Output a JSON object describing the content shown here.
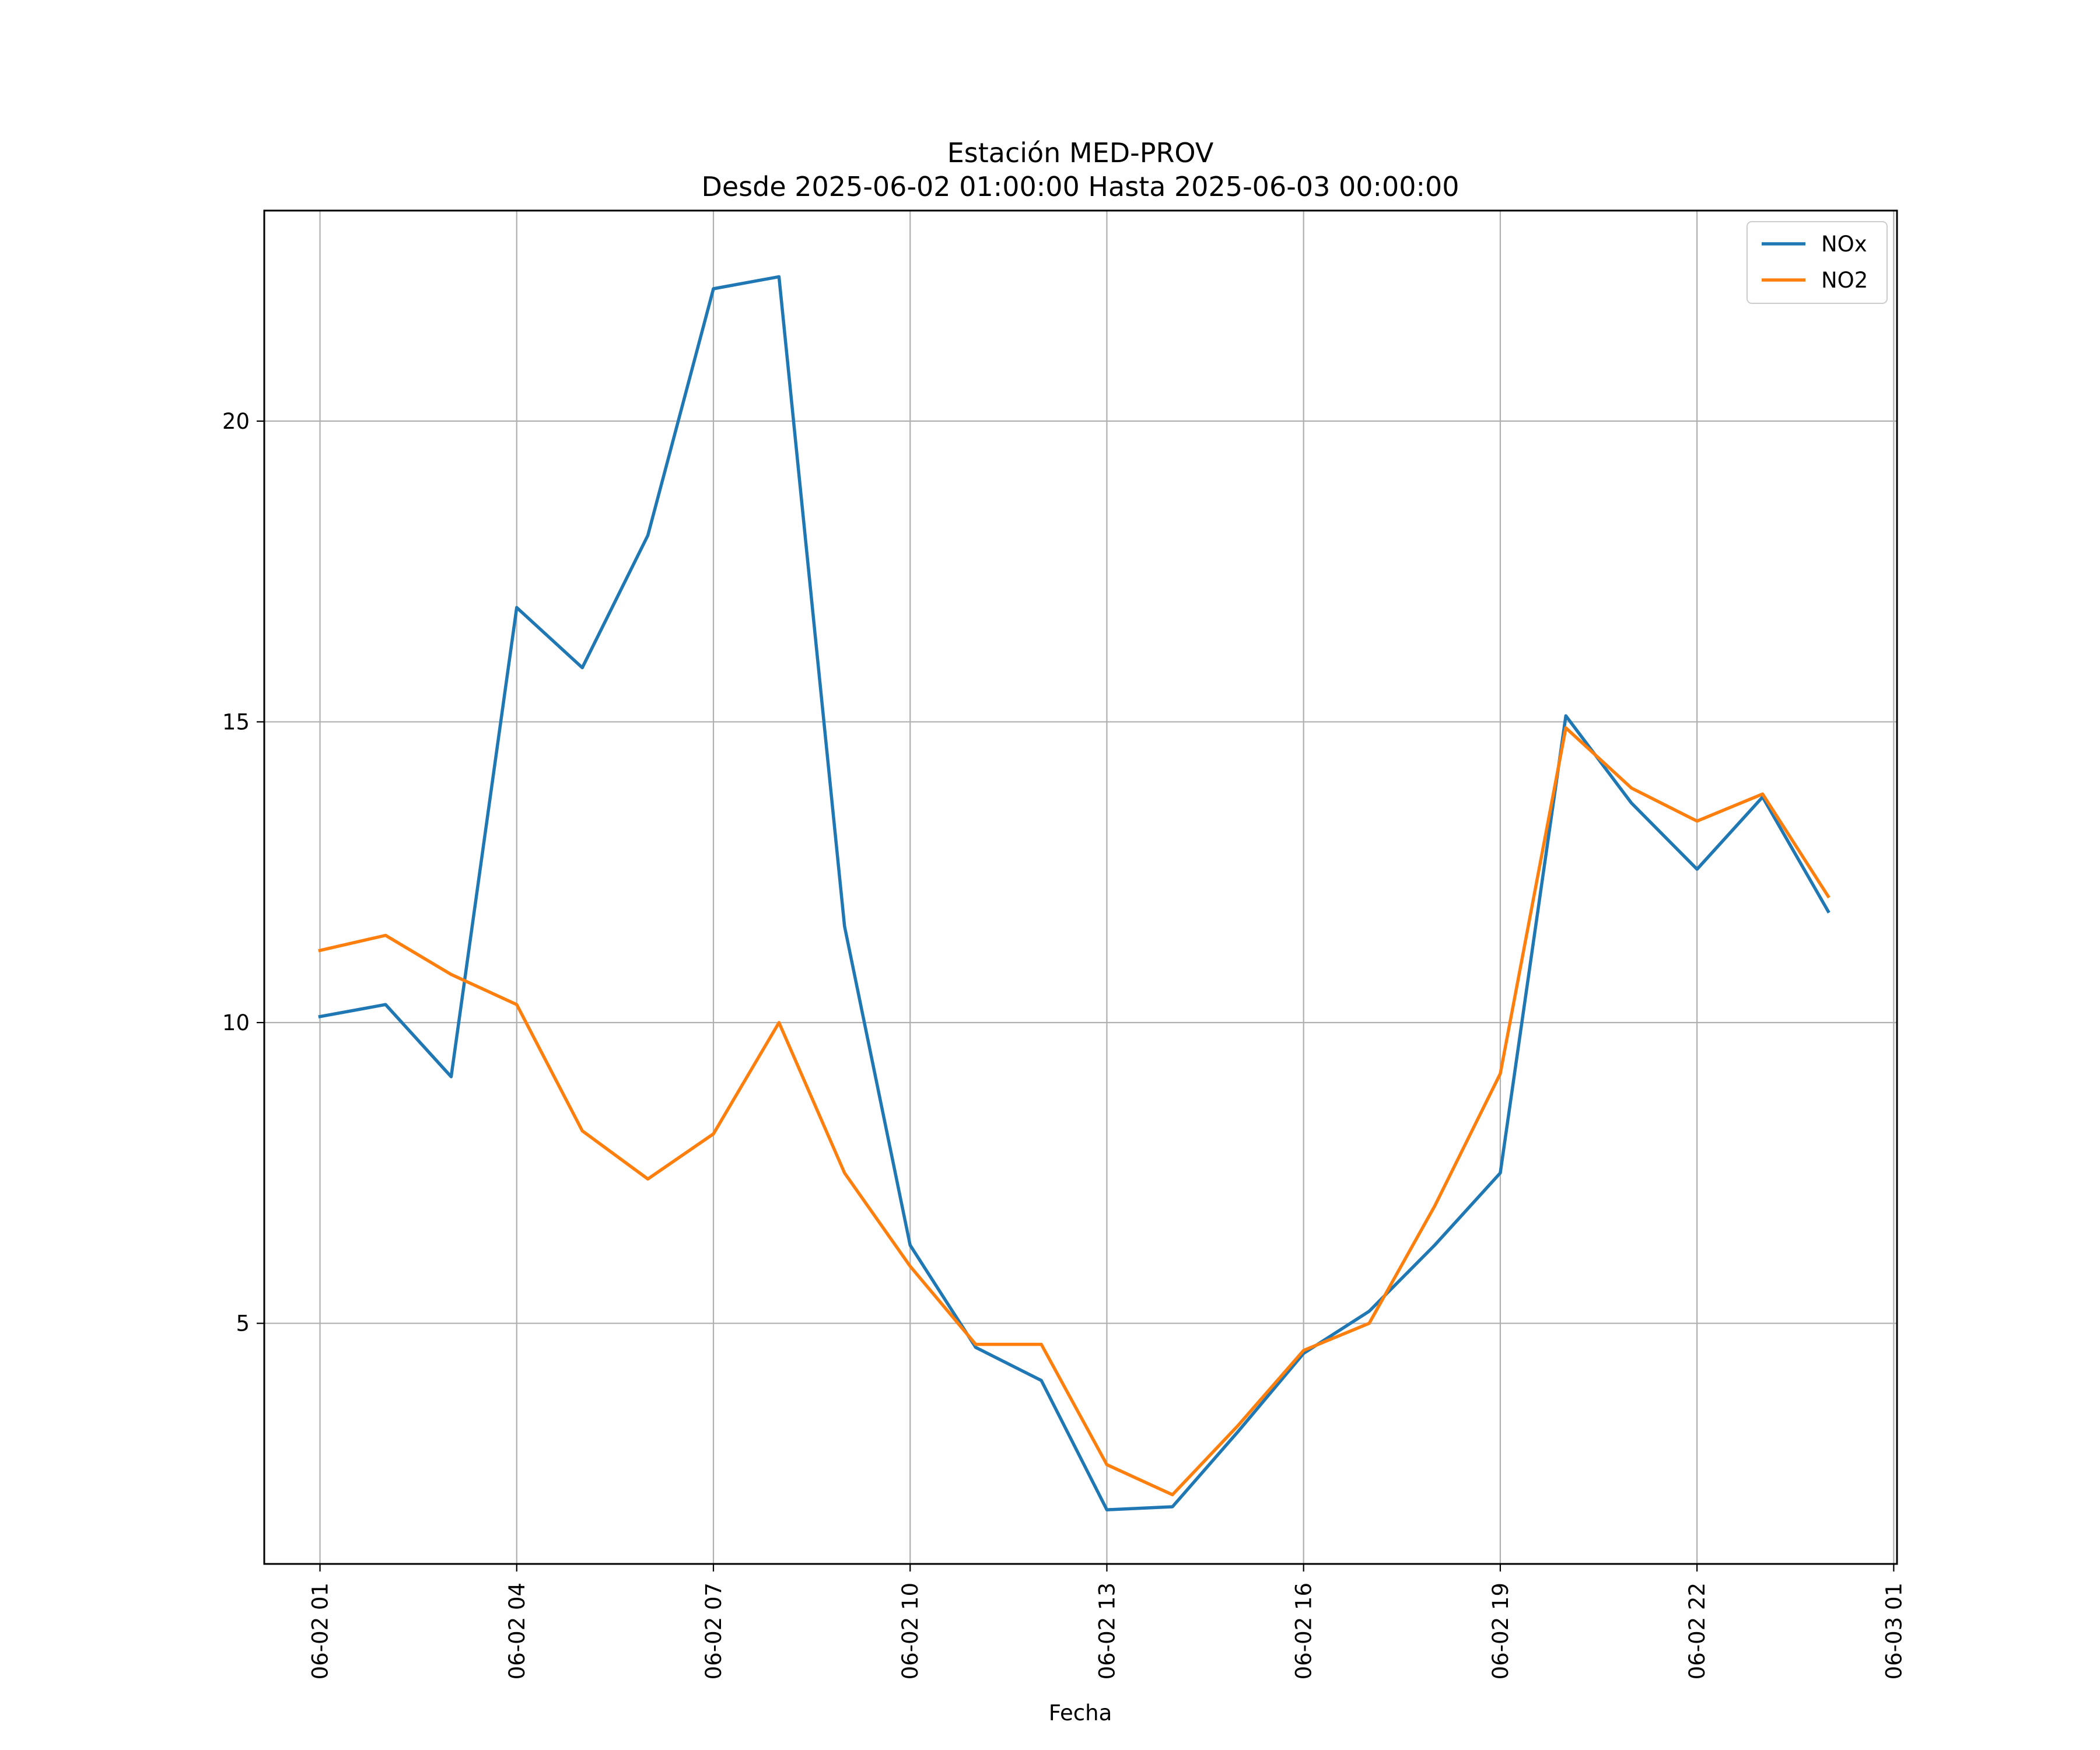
{
  "chart_data": {
    "type": "line",
    "title": "Estación MED-PROV",
    "subtitle": "Desde 2025-06-02 01:00:00 Hasta 2025-06-03 00:00:00",
    "xlabel": "Fecha",
    "ylabel": "",
    "x_hours": [
      1,
      2,
      3,
      4,
      5,
      6,
      7,
      8,
      9,
      10,
      11,
      12,
      13,
      14,
      15,
      16,
      17,
      18,
      19,
      20,
      21,
      22,
      23,
      24
    ],
    "x": [
      "2025-06-02 01:00",
      "2025-06-02 02:00",
      "2025-06-02 03:00",
      "2025-06-02 04:00",
      "2025-06-02 05:00",
      "2025-06-02 06:00",
      "2025-06-02 07:00",
      "2025-06-02 08:00",
      "2025-06-02 09:00",
      "2025-06-02 10:00",
      "2025-06-02 11:00",
      "2025-06-02 12:00",
      "2025-06-02 13:00",
      "2025-06-02 14:00",
      "2025-06-02 15:00",
      "2025-06-02 16:00",
      "2025-06-02 17:00",
      "2025-06-02 18:00",
      "2025-06-02 19:00",
      "2025-06-02 20:00",
      "2025-06-02 21:00",
      "2025-06-02 22:00",
      "2025-06-02 23:00",
      "2025-06-03 00:00"
    ],
    "series": [
      {
        "name": "NOx",
        "color": "#1f77b4",
        "values": [
          10.1,
          10.3,
          9.1,
          16.9,
          15.9,
          18.1,
          22.2,
          22.4,
          11.6,
          6.3,
          4.6,
          4.05,
          1.9,
          1.95,
          3.2,
          4.5,
          5.2,
          6.3,
          7.5,
          15.1,
          13.65,
          12.55,
          13.75,
          11.85
        ]
      },
      {
        "name": "NO2",
        "color": "#ff7f0e",
        "values": [
          11.2,
          11.45,
          10.8,
          10.3,
          8.2,
          7.4,
          8.15,
          10.0,
          7.5,
          5.95,
          4.65,
          4.65,
          2.65,
          2.15,
          3.3,
          4.55,
          5.0,
          6.95,
          9.15,
          14.9,
          13.9,
          13.35,
          13.8,
          12.1
        ]
      }
    ],
    "x_tick_hours": [
      1,
      4,
      7,
      10,
      13,
      16,
      19,
      22,
      25
    ],
    "x_tick_labels": [
      "06-02 01",
      "06-02 04",
      "06-02 07",
      "06-02 10",
      "06-02 13",
      "06-02 16",
      "06-02 19",
      "06-02 22",
      "06-03 01"
    ],
    "y_ticks": [
      5,
      10,
      15,
      20
    ],
    "xlim": [
      0.15,
      25.05
    ],
    "ylim": [
      1.0,
      23.5
    ],
    "grid": true,
    "legend_position": "top-right"
  }
}
